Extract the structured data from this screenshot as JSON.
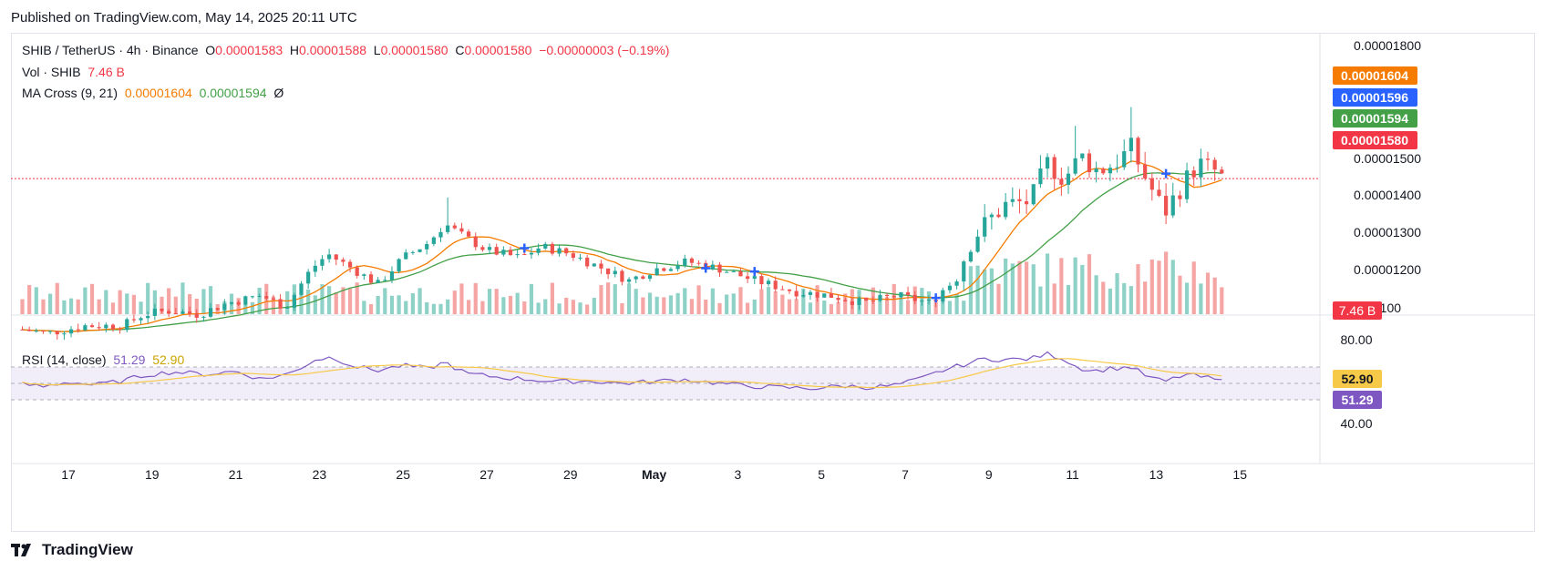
{
  "published": "Published on TradingView.com, May 14, 2025 20:11 UTC",
  "legend": {
    "symbol": "SHIB / TetherUS · 4h · Binance",
    "o_label": "O",
    "o_value": "0.00001583",
    "h_label": "H",
    "h_value": "0.00001588",
    "l_label": "L",
    "l_value": "0.00001580",
    "c_label": "C",
    "c_value": "0.00001580",
    "change": "−0.00000003 (−0.19%)",
    "vol_label": "Vol · SHIB",
    "vol_value": "7.46 B",
    "ma_label": "MA Cross (9, 21)",
    "ma_fast": "0.00001604",
    "ma_slow": "0.00001594",
    "ma_eye": "Ø",
    "rsi_label": "RSI (14, close)",
    "rsi_value": "51.29",
    "rsi_ma": "52.90"
  },
  "footer": {
    "brand": "TradingView"
  },
  "colors": {
    "up": "#26a69a",
    "down": "#ef5350",
    "ma_fast": "#f57c00",
    "ma_slow": "#43a047",
    "rsi": "#7e57c2",
    "rsi_ma": "#f7c948",
    "cross": "#2962ff"
  },
  "chart_data": {
    "type": "candlestick",
    "y_ticks": [
      "0.00001800",
      "0.00001500",
      "0.00001400",
      "0.00001300",
      "0.00001200",
      "1100"
    ],
    "price_labels": [
      {
        "text": "0.00001604",
        "value": 1.604e-05,
        "color": "#f57c00"
      },
      {
        "text": "0.00001596",
        "value": 1.596e-05,
        "color": "#2962ff"
      },
      {
        "text": "0.00001594",
        "value": 1.594e-05,
        "color": "#43a047"
      },
      {
        "text": "0.00001580",
        "value": 1.58e-05,
        "color": "#f23645"
      }
    ],
    "vol_label": {
      "text": "7.46 B",
      "color": "#f23645"
    },
    "rsi_ticks": [
      "80.00",
      "40.00"
    ],
    "rsi_labels": [
      {
        "text": "52.90",
        "value": 52.9,
        "color": "#f7c948",
        "textColor": "#131722"
      },
      {
        "text": "51.29",
        "value": 51.29,
        "color": "#7e57c2",
        "textColor": "#ffffff"
      }
    ],
    "x_ticks": [
      {
        "label": "17",
        "day": 17
      },
      {
        "label": "19",
        "day": 19
      },
      {
        "label": "21",
        "day": 21
      },
      {
        "label": "23",
        "day": 23
      },
      {
        "label": "25",
        "day": 25
      },
      {
        "label": "27",
        "day": 27
      },
      {
        "label": "29",
        "day": 29
      },
      {
        "label": "May",
        "day": 31
      },
      {
        "label": "3",
        "day": 33
      },
      {
        "label": "5",
        "day": 35
      },
      {
        "label": "7",
        "day": 37
      },
      {
        "label": "9",
        "day": 39
      },
      {
        "label": "11",
        "day": 41
      },
      {
        "label": "13",
        "day": 43
      },
      {
        "label": "15",
        "day": 45
      }
    ],
    "close_anchors": [
      [
        15.9,
        1.18
      ],
      [
        16.5,
        1.17
      ],
      [
        17.4,
        1.19
      ],
      [
        18.3,
        1.19
      ],
      [
        18.8,
        1.22
      ],
      [
        19.4,
        1.23
      ],
      [
        20.1,
        1.22
      ],
      [
        20.8,
        1.25
      ],
      [
        21.6,
        1.27
      ],
      [
        22.2,
        1.24
      ],
      [
        22.8,
        1.34
      ],
      [
        23.2,
        1.38
      ],
      [
        23.8,
        1.34
      ],
      [
        24.4,
        1.3
      ],
      [
        25.0,
        1.37
      ],
      [
        25.6,
        1.41
      ],
      [
        26.0,
        1.46
      ],
      [
        26.4,
        1.43
      ],
      [
        27.0,
        1.39
      ],
      [
        27.8,
        1.37
      ],
      [
        28.3,
        1.4
      ],
      [
        29.0,
        1.38
      ],
      [
        29.8,
        1.34
      ],
      [
        30.4,
        1.31
      ],
      [
        31.0,
        1.34
      ],
      [
        31.8,
        1.36
      ],
      [
        32.6,
        1.34
      ],
      [
        33.4,
        1.31
      ],
      [
        34.4,
        1.28
      ],
      [
        35.2,
        1.27
      ],
      [
        36.0,
        1.25
      ],
      [
        36.8,
        1.27
      ],
      [
        37.6,
        1.25
      ],
      [
        38.2,
        1.32
      ],
      [
        38.6,
        1.42
      ],
      [
        39.0,
        1.47
      ],
      [
        39.4,
        1.51
      ],
      [
        40.0,
        1.52
      ],
      [
        40.4,
        1.62
      ],
      [
        40.8,
        1.58
      ],
      [
        41.2,
        1.64
      ],
      [
        41.6,
        1.6
      ],
      [
        42.0,
        1.62
      ],
      [
        42.4,
        1.66
      ],
      [
        42.8,
        1.57
      ],
      [
        43.2,
        1.49
      ],
      [
        43.6,
        1.56
      ],
      [
        44.0,
        1.62
      ],
      [
        44.4,
        1.6
      ],
      [
        44.7,
        1.58
      ]
    ],
    "rsi_anchors": [
      [
        15.9,
        49
      ],
      [
        16.4,
        46
      ],
      [
        17.0,
        52
      ],
      [
        17.6,
        48
      ],
      [
        18.3,
        53
      ],
      [
        18.8,
        60
      ],
      [
        19.5,
        64
      ],
      [
        20.3,
        61
      ],
      [
        21.0,
        65
      ],
      [
        21.6,
        55
      ],
      [
        22.3,
        62
      ],
      [
        22.9,
        79
      ],
      [
        23.3,
        82
      ],
      [
        23.9,
        70
      ],
      [
        24.4,
        66
      ],
      [
        25.0,
        72
      ],
      [
        25.6,
        68
      ],
      [
        26.0,
        76
      ],
      [
        26.5,
        62
      ],
      [
        27.2,
        58
      ],
      [
        28.0,
        55
      ],
      [
        28.7,
        52
      ],
      [
        29.5,
        53
      ],
      [
        30.2,
        50
      ],
      [
        30.9,
        52
      ],
      [
        31.7,
        55
      ],
      [
        32.4,
        51
      ],
      [
        33.2,
        47
      ],
      [
        34.0,
        45
      ],
      [
        34.8,
        44
      ],
      [
        35.5,
        47
      ],
      [
        36.2,
        45
      ],
      [
        36.8,
        48
      ],
      [
        37.4,
        56
      ],
      [
        37.9,
        66
      ],
      [
        38.4,
        73
      ],
      [
        38.9,
        80
      ],
      [
        39.4,
        79
      ],
      [
        40.0,
        80
      ],
      [
        40.4,
        86
      ],
      [
        40.8,
        80
      ],
      [
        41.1,
        70
      ],
      [
        41.5,
        65
      ],
      [
        41.9,
        68
      ],
      [
        42.4,
        70
      ],
      [
        42.8,
        58
      ],
      [
        43.2,
        52
      ],
      [
        43.7,
        61
      ],
      [
        44.2,
        57
      ],
      [
        44.7,
        51
      ]
    ]
  }
}
